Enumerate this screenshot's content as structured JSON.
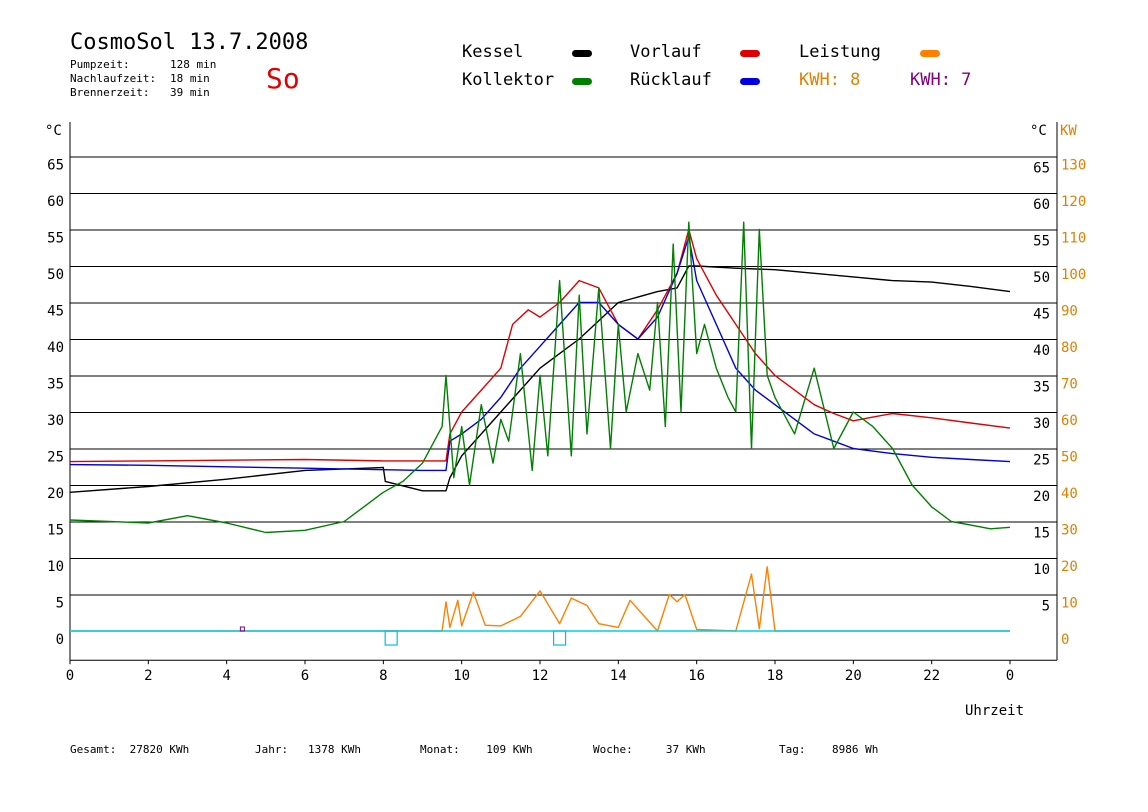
{
  "header": {
    "title": "CosmoSol 13.7.2008",
    "day": "So",
    "stats": [
      {
        "label": "Pumpzeit:",
        "value": "128 min"
      },
      {
        "label": "Nachlaufzeit:",
        "value": "18 min"
      },
      {
        "label": "Brennerzeit:",
        "value": "39 min"
      }
    ]
  },
  "legend": {
    "kessel": {
      "label": "Kessel",
      "color": "#000000"
    },
    "kollektor": {
      "label": "Kollektor",
      "color": "#008000"
    },
    "vorlauf": {
      "label": "Vorlauf",
      "color": "#e00000"
    },
    "ruecklauf": {
      "label": "Rücklauf",
      "color": "#0000e0"
    },
    "leistung": {
      "label": "Leistung",
      "color": "#ff8000"
    },
    "kwh1": "KWH: 8",
    "kwh2": "KWH: 7",
    "kwh1_color": "#e08000",
    "kwh2_color": "#800080"
  },
  "footer": {
    "gesamt": "Gesamt:  27820 KWh",
    "jahr": "Jahr:   1378 KWh",
    "monat": "Monat:    109 KWh",
    "woche": "Woche:     37 KWh",
    "tag": "Tag:    8986 Wh"
  },
  "chart_data": {
    "type": "line",
    "xlabel": "Uhrzeit",
    "ylabel_left": "°C",
    "ylabel_right_temp": "°C",
    "ylabel_right_power": "KW",
    "xlim": [
      0,
      24
    ],
    "ylim": [
      -4,
      69
    ],
    "x_ticks": [
      "0",
      "2",
      "4",
      "6",
      "8",
      "10",
      "12",
      "14",
      "16",
      "18",
      "20",
      "22",
      "0"
    ],
    "y_ticks_left": [
      0,
      5,
      10,
      15,
      20,
      25,
      30,
      35,
      40,
      45,
      50,
      55,
      60,
      65
    ],
    "y_ticks_right": [
      5,
      10,
      15,
      20,
      25,
      30,
      35,
      40,
      45,
      50,
      55,
      60,
      65
    ],
    "y_ticks_kw": [
      0,
      10,
      20,
      30,
      40,
      50,
      60,
      70,
      80,
      90,
      100,
      110,
      120,
      130
    ],
    "series": [
      {
        "name": "Kessel",
        "color": "#000000",
        "x": [
          0,
          2,
          4,
          6,
          8,
          8.05,
          9,
          9.6,
          9.7,
          10,
          10.5,
          11,
          11.5,
          12,
          12.5,
          13,
          14,
          15,
          15.5,
          15.8,
          16,
          17,
          18,
          19,
          20,
          21,
          22,
          23,
          24
        ],
        "y": [
          19,
          19.8,
          20.8,
          22,
          22.4,
          20.5,
          19.2,
          19.2,
          21,
          24,
          27,
          30,
          33,
          36,
          38,
          40,
          45,
          46.5,
          47,
          50,
          50,
          49.7,
          49.5,
          49,
          48.5,
          48,
          47.8,
          47.2,
          46.5
        ]
      },
      {
        "name": "Vorlauf",
        "color": "#e00000",
        "x": [
          0,
          2,
          4,
          6,
          8,
          9,
          9.6,
          9.7,
          10,
          10.5,
          11,
          11.3,
          11.7,
          12,
          12.5,
          13,
          13.5,
          14,
          14.5,
          15,
          15.5,
          15.8,
          16,
          16.5,
          17,
          17.5,
          18,
          18.5,
          19,
          19.5,
          20,
          20.5,
          21,
          22,
          23,
          24
        ],
        "y": [
          23.2,
          23.3,
          23.4,
          23.5,
          23.3,
          23.3,
          23.3,
          27,
          30,
          33,
          36,
          42,
          44,
          43,
          45,
          48,
          47,
          42,
          40,
          44,
          49,
          55,
          51,
          46,
          42,
          38,
          35,
          33,
          31,
          29.8,
          28.8,
          29.3,
          29.8,
          29.2,
          28.5,
          27.8
        ]
      },
      {
        "name": "Rücklauf",
        "color": "#0000e0",
        "x": [
          0,
          2,
          4,
          6,
          8,
          9,
          9.6,
          9.7,
          10,
          10.5,
          11,
          11.5,
          12,
          12.5,
          13,
          13.5,
          14,
          14.5,
          15,
          15.5,
          15.8,
          16,
          16.5,
          17,
          17.5,
          18,
          18.5,
          19,
          19.5,
          20,
          21,
          22,
          23,
          24
        ],
        "y": [
          22.8,
          22.7,
          22.5,
          22.3,
          22.1,
          22,
          22,
          26,
          27,
          29,
          32,
          36,
          39,
          42,
          45,
          45,
          42,
          40,
          43,
          49,
          54,
          48,
          42,
          36,
          33,
          31,
          29,
          27,
          26,
          25,
          24.3,
          23.8,
          23.5,
          23.2
        ]
      },
      {
        "name": "Kollektor",
        "color": "#008000",
        "x": [
          0,
          1,
          2,
          3,
          4,
          5,
          6,
          7,
          7.5,
          8,
          8.5,
          9,
          9.5,
          9.6,
          9.8,
          10,
          10.2,
          10.5,
          10.8,
          11,
          11.2,
          11.5,
          11.8,
          12,
          12.2,
          12.5,
          12.8,
          13,
          13.2,
          13.5,
          13.8,
          14,
          14.2,
          14.5,
          14.8,
          15,
          15.2,
          15.4,
          15.6,
          15.8,
          16,
          16.2,
          16.5,
          16.8,
          17,
          17.2,
          17.4,
          17.6,
          17.8,
          18,
          18.5,
          19,
          19.5,
          20,
          20.5,
          21,
          21.5,
          22,
          22.5,
          23,
          23.5,
          24
        ],
        "y": [
          15.2,
          15,
          14.8,
          15.8,
          14.8,
          13.5,
          13.8,
          15,
          17,
          19,
          20.5,
          23,
          28,
          35,
          21,
          28,
          20,
          31,
          23,
          29,
          26,
          38,
          22,
          35,
          24,
          48,
          24,
          46,
          27,
          47,
          25,
          42,
          30,
          38,
          33,
          45,
          28,
          53,
          30,
          56,
          38,
          42,
          36,
          32,
          30,
          56,
          25,
          55,
          35,
          32,
          27,
          36,
          25,
          30,
          28,
          25,
          20,
          17,
          15,
          14.5,
          14,
          14.2
        ]
      },
      {
        "name": "Leistung",
        "color": "#ff8000",
        "x": [
          0,
          9.5,
          9.6,
          9.7,
          9.9,
          10,
          10.3,
          10.6,
          11,
          11.5,
          12,
          12.5,
          12.8,
          13.2,
          13.5,
          14,
          14.3,
          15,
          15.3,
          15.5,
          15.7,
          16,
          17,
          17.4,
          17.6,
          17.8,
          18,
          24
        ],
        "y": [
          0,
          0,
          4,
          0.5,
          4.2,
          0.7,
          5.3,
          0.8,
          0.7,
          2,
          5.5,
          1,
          4.5,
          3.5,
          1,
          0.5,
          4.2,
          0,
          5,
          4,
          5,
          0.2,
          0,
          7.8,
          0.3,
          8.8,
          0,
          0
        ]
      }
    ]
  }
}
